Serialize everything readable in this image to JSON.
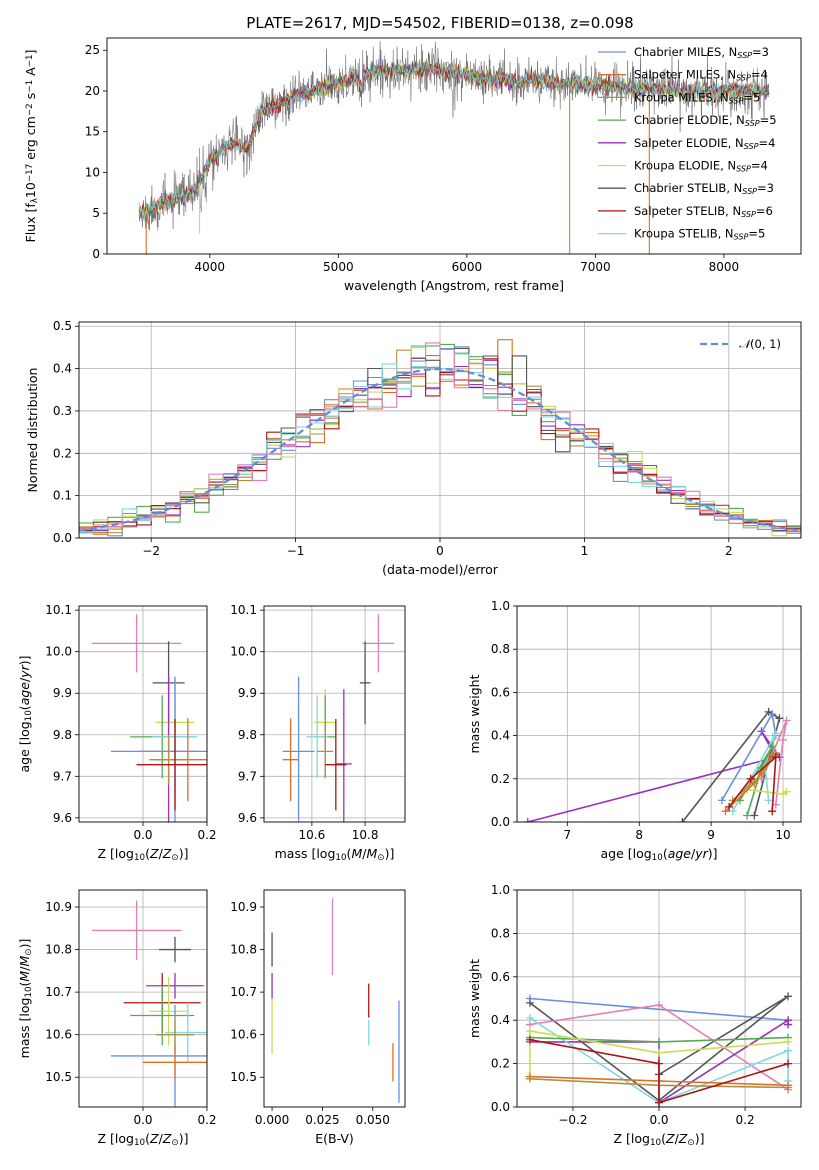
{
  "figure": {
    "title": "PLATE=2617, MJD=54502, FIBERID=0138, z=0.098"
  },
  "colors": {
    "Chabrier MILES": "#6a8fdc",
    "Salpeter MILES": "#e07020",
    "Kroupa MILES": "#b09040",
    "Chabrier ELODIE": "#55aa55",
    "Salpeter ELODIE": "#9933bb",
    "Kroupa ELODIE": "#c8e050",
    "Chabrier STELIB": "#555555",
    "Salpeter STELIB": "#aa1515",
    "Kroupa STELIB": "#80d8e0",
    "Extra": "#e080b0"
  },
  "chart_data": [
    {
      "id": "spectrum",
      "type": "line",
      "xlabel": "wavelength [Angstrom, rest frame]",
      "ylabel": "Flux [fλ10⁻¹⁷ erg cm⁻² s⁻¹ A⁻¹]",
      "xlim": [
        3200,
        8600
      ],
      "ylim": [
        0,
        26.5
      ],
      "xticks": [
        4000,
        5000,
        6000,
        7000,
        8000
      ],
      "yticks": [
        0,
        5,
        10,
        15,
        20,
        25
      ],
      "legend": "top-right",
      "series": [
        {
          "name": "Chabrier MILES, N_SSP=3",
          "legend_main": "Chabrier MILES, N",
          "legend_sub": "SSP",
          "legend_tail": "=3"
        },
        {
          "name": "Salpeter MILES, N_SSP=4",
          "legend_main": "Salpeter MILES, N",
          "legend_sub": "SSP",
          "legend_tail": "=4"
        },
        {
          "name": "Kroupa MILES, N_SSP=5",
          "legend_main": "Kroupa MILES, N",
          "legend_sub": "SSP",
          "legend_tail": "=5"
        },
        {
          "name": "Chabrier ELODIE, N_SSP=5",
          "legend_main": "Chabrier ELODIE, N",
          "legend_sub": "SSP",
          "legend_tail": "=5"
        },
        {
          "name": "Salpeter ELODIE, N_SSP=4",
          "legend_main": "Salpeter ELODIE, N",
          "legend_sub": "SSP",
          "legend_tail": "=4"
        },
        {
          "name": "Kroupa ELODIE, N_SSP=4",
          "legend_main": "Kroupa ELODIE, N",
          "legend_sub": "SSP",
          "legend_tail": "=4"
        },
        {
          "name": "Chabrier STELIB, N_SSP=3",
          "legend_main": "Chabrier STELIB, N",
          "legend_sub": "SSP",
          "legend_tail": "=3"
        },
        {
          "name": "Salpeter STELIB, N_SSP=6",
          "legend_main": "Salpeter STELIB, N",
          "legend_sub": "SSP",
          "legend_tail": "=6"
        },
        {
          "name": "Kroupa STELIB, N_SSP=5",
          "legend_main": "Kroupa STELIB, N",
          "legend_sub": "SSP",
          "legend_tail": "=5"
        }
      ],
      "continuum": {
        "x": [
          3500,
          3600,
          3700,
          3800,
          3900,
          4000,
          4100,
          4200,
          4300,
          4400,
          4500,
          4600,
          4700,
          4800,
          4900,
          5000,
          5100,
          5200,
          5300,
          5400,
          5500,
          5600,
          5700,
          5800,
          5900,
          6000,
          6100,
          6200,
          6300,
          6400,
          6500,
          6600,
          6700,
          6800,
          6900,
          7000,
          7100,
          7200,
          7300,
          7400,
          7500,
          7600,
          7700,
          7800,
          7900,
          8000,
          8100,
          8200,
          8300
        ],
        "y": [
          5.0,
          6.0,
          6.5,
          7.0,
          8.0,
          11.5,
          13.0,
          13.5,
          13.0,
          17.5,
          18.0,
          19.0,
          19.5,
          20.0,
          20.5,
          21.0,
          21.5,
          22.0,
          22.5,
          22.5,
          22.5,
          22.5,
          22.8,
          22.5,
          22.3,
          22.0,
          21.5,
          21.5,
          21.5,
          21.0,
          21.5,
          21.3,
          20.8,
          21.0,
          20.7,
          20.6,
          20.5,
          20.3,
          20.2,
          20.4,
          20.3,
          20.2,
          20.0,
          20.0,
          20.1,
          20.0,
          20.2,
          20.0,
          20.0
        ]
      },
      "dips": [
        {
          "x": 3505,
          "y": 0,
          "series": "Salpeter MILES, N_SSP=4"
        },
        {
          "x": 3920,
          "y": 2.5,
          "series": "Kroupa ELODIE, N_SSP=4"
        },
        {
          "x": 6800,
          "y": 0,
          "series": "Kroupa MILES, N_SSP=5"
        },
        {
          "x": 7420,
          "y": 0,
          "series": "Salpeter MILES, N_SSP=4"
        }
      ]
    },
    {
      "id": "residuals",
      "type": "step-histogram",
      "xlabel": "(data-model)/error",
      "ylabel": "Normed distribution",
      "xlim": [
        -2.5,
        2.5
      ],
      "ylim": [
        0,
        0.51
      ],
      "xticks": [
        -2,
        -1,
        0,
        1,
        2
      ],
      "yticks": [
        0.0,
        0.1,
        0.2,
        0.3,
        0.4,
        0.5
      ],
      "grid": true,
      "legend": "top-right",
      "reference": {
        "name": "N(0,1)",
        "label_main": "𝒩(0, 1)",
        "mu": 0,
        "sigma": 1
      },
      "bin_width": 0.1
    },
    {
      "id": "age-vs-Z",
      "type": "errorbar",
      "xlabel": "Z [log10(Z/Z⊙)]",
      "ylabel": "age [log10(age/yr)]",
      "xlim": [
        -0.2,
        0.2
      ],
      "ylim": [
        9.59,
        10.11
      ],
      "xticks": [
        0.0,
        0.2
      ],
      "yticks": [
        9.6,
        9.7,
        9.8,
        9.9,
        10.0,
        10.1
      ],
      "grid": true,
      "points": [
        {
          "color": "Extra",
          "x": -0.02,
          "y": 10.02,
          "xerr": 0.14,
          "yerr": 0.07
        },
        {
          "color": "Chabrier STELIB",
          "x": 0.08,
          "y": 9.925,
          "xerr": 0.05,
          "yerr": 0.1
        },
        {
          "color": "Kroupa ELODIE",
          "x": 0.1,
          "y": 9.83,
          "xerr": 0.06,
          "yerr": 0.08
        },
        {
          "color": "Salpeter ELODIE",
          "x": 0.08,
          "y": 9.76,
          "xerr": 0.09,
          "yerr": 0.18
        },
        {
          "color": "Chabrier ELODIE",
          "x": 0.06,
          "y": 9.795,
          "xerr": 0.1,
          "yerr": 0.1
        },
        {
          "color": "Kroupa STELIB",
          "x": 0.1,
          "y": 9.795,
          "xerr": 0.07,
          "yerr": 0.14
        },
        {
          "color": "Chabrier MILES",
          "x": 0.1,
          "y": 9.76,
          "xerr": 0.2,
          "yerr": 0.18
        },
        {
          "color": "Salpeter MILES",
          "x": 0.14,
          "y": 9.74,
          "xerr": 0.1,
          "yerr": 0.1
        },
        {
          "color": "Kroupa MILES",
          "x": 0.08,
          "y": 9.74,
          "xerr": 0.06,
          "yerr": 0.06
        },
        {
          "color": "Salpeter STELIB",
          "x": 0.1,
          "y": 9.728,
          "xerr": 0.12,
          "yerr": 0.11
        }
      ]
    },
    {
      "id": "age-vs-mass",
      "type": "errorbar",
      "xlabel": "mass [log10(M/M⊙)]",
      "ylabel": "",
      "xlim": [
        10.42,
        10.95
      ],
      "ylim": [
        9.59,
        10.11
      ],
      "xticks": [
        10.6,
        10.8
      ],
      "yticks": [
        9.6,
        9.7,
        9.8,
        9.9,
        10.0,
        10.1
      ],
      "grid": true,
      "points": [
        {
          "color": "Extra",
          "x": 10.85,
          "y": 10.02,
          "xerr": 0.06,
          "yerr": 0.07
        },
        {
          "color": "Chabrier STELIB",
          "x": 10.8,
          "y": 9.925,
          "xerr": 0.02,
          "yerr": 0.1
        },
        {
          "color": "Kroupa ELODIE",
          "x": 10.65,
          "y": 9.83,
          "xerr": 0.04,
          "yerr": 0.08
        },
        {
          "color": "Salpeter ELODIE",
          "x": 10.72,
          "y": 9.73,
          "xerr": 0.03,
          "yerr": 0.18
        },
        {
          "color": "Chabrier ELODIE",
          "x": 10.65,
          "y": 9.795,
          "xerr": 0.04,
          "yerr": 0.1
        },
        {
          "color": "Kroupa STELIB",
          "x": 10.62,
          "y": 9.795,
          "xerr": 0.04,
          "yerr": 0.1
        },
        {
          "color": "Chabrier MILES",
          "x": 10.55,
          "y": 9.76,
          "xerr": 0.06,
          "yerr": 0.18
        },
        {
          "color": "Salpeter MILES",
          "x": 10.52,
          "y": 9.74,
          "xerr": 0.03,
          "yerr": 0.1
        },
        {
          "color": "Kroupa MILES",
          "x": 10.65,
          "y": 9.76,
          "xerr": 0.03,
          "yerr": 0.06
        },
        {
          "color": "Salpeter STELIB",
          "x": 10.69,
          "y": 9.728,
          "xerr": 0.04,
          "yerr": 0.11
        }
      ]
    },
    {
      "id": "weight-vs-age",
      "type": "line",
      "xlabel": "age [log10(age/yr)]",
      "ylabel": "mass weight",
      "xlim": [
        6.3,
        10.25
      ],
      "ylim": [
        0,
        1.0
      ],
      "xticks": [
        7,
        8,
        9,
        10
      ],
      "yticks": [
        0.0,
        0.2,
        0.4,
        0.6,
        0.8,
        1.0
      ],
      "grid": true,
      "series": [
        {
          "color": "Salpeter ELODIE",
          "x": [
            6.45,
            9.9,
            9.7,
            9.95
          ],
          "y": [
            0.0,
            0.3,
            0.42,
            0.3
          ]
        },
        {
          "color": "Chabrier STELIB",
          "x": [
            8.6,
            9.8,
            9.95,
            9.6
          ],
          "y": [
            0.0,
            0.51,
            0.48,
            0.03
          ]
        },
        {
          "color": "Chabrier MILES",
          "x": [
            9.15,
            9.85,
            9.9
          ],
          "y": [
            0.1,
            0.5,
            0.4
          ]
        },
        {
          "color": "Extra",
          "x": [
            9.7,
            10.05,
            10.0,
            9.9
          ],
          "y": [
            0.2,
            0.47,
            0.38,
            0.08
          ]
        },
        {
          "color": "Kroupa STELIB",
          "x": [
            9.3,
            9.9,
            9.75,
            9.8
          ],
          "y": [
            0.05,
            0.41,
            0.26,
            0.1
          ]
        },
        {
          "color": "Chabrier ELODIE",
          "x": [
            9.4,
            9.85,
            9.7,
            9.5
          ],
          "y": [
            0.1,
            0.35,
            0.25,
            0.03
          ]
        },
        {
          "color": "Kroupa ELODIE",
          "x": [
            9.5,
            10.0,
            10.05
          ],
          "y": [
            0.15,
            0.13,
            0.14
          ]
        },
        {
          "color": "Salpeter MILES",
          "x": [
            9.2,
            9.6,
            9.85
          ],
          "y": [
            0.05,
            0.18,
            0.31
          ]
        },
        {
          "color": "Kroupa MILES",
          "x": [
            9.3,
            9.7,
            9.9
          ],
          "y": [
            0.1,
            0.22,
            0.32
          ]
        },
        {
          "color": "Salpeter STELIB",
          "x": [
            9.25,
            9.55,
            9.9,
            9.85
          ],
          "y": [
            0.07,
            0.2,
            0.3,
            0.05
          ]
        }
      ]
    },
    {
      "id": "mass-vs-Z",
      "type": "errorbar",
      "xlabel": "Z [log10(Z/Z⊙)]",
      "ylabel": "mass [log10(M/M⊙)]",
      "xlim": [
        -0.2,
        0.2
      ],
      "ylim": [
        10.43,
        10.94
      ],
      "xticks": [
        0.0,
        0.2
      ],
      "yticks": [
        10.5,
        10.6,
        10.7,
        10.8,
        10.9
      ],
      "grid": true,
      "points": [
        {
          "color": "Extra",
          "x": -0.02,
          "y": 10.845,
          "xerr": 0.14,
          "yerr": 0.07
        },
        {
          "color": "Chabrier STELIB",
          "x": 0.1,
          "y": 10.8,
          "xerr": 0.05,
          "yerr": 0.03
        },
        {
          "color": "Salpeter ELODIE",
          "x": 0.1,
          "y": 10.715,
          "xerr": 0.09,
          "yerr": 0.03
        },
        {
          "color": "Salpeter STELIB",
          "x": 0.06,
          "y": 10.675,
          "xerr": 0.12,
          "yerr": 0.07
        },
        {
          "color": "Kroupa ELODIE",
          "x": 0.08,
          "y": 10.655,
          "xerr": 0.06,
          "yerr": 0.08
        },
        {
          "color": "Chabrier ELODIE",
          "x": 0.06,
          "y": 10.645,
          "xerr": 0.1,
          "yerr": 0.07
        },
        {
          "color": "Kroupa STELIB",
          "x": 0.14,
          "y": 10.605,
          "xerr": 0.07,
          "yerr": 0.07
        },
        {
          "color": "Chabrier MILES",
          "x": 0.1,
          "y": 10.55,
          "xerr": 0.2,
          "yerr": 0.12
        },
        {
          "color": "Salpeter MILES",
          "x": 0.1,
          "y": 10.535,
          "xerr": 0.1,
          "yerr": 0.04
        },
        {
          "color": "Kroupa MILES",
          "x": 0.1,
          "y": 10.6,
          "xerr": 0.06,
          "yerr": 0.04
        }
      ]
    },
    {
      "id": "mass-vs-EBV",
      "type": "errorbar",
      "xlabel": "E(B-V)",
      "ylabel": "",
      "xlim": [
        -0.004,
        0.066
      ],
      "ylim": [
        10.43,
        10.94
      ],
      "xticks": [
        0.0,
        0.025,
        0.05
      ],
      "tick_labels": [
        "0.000",
        "0.025",
        "0.050"
      ],
      "yticks": [
        10.5,
        10.6,
        10.7,
        10.8,
        10.9
      ],
      "grid": false,
      "points": [
        {
          "color": "Extra",
          "x": 0.03,
          "y": 10.83,
          "xerr": 0.0,
          "yerr": 0.09
        },
        {
          "color": "Chabrier STELIB",
          "x": 0.0,
          "y": 10.8,
          "xerr": 0.0,
          "yerr": 0.04
        },
        {
          "color": "Salpeter ELODIE",
          "x": 0.0,
          "y": 10.715,
          "xerr": 0.0,
          "yerr": 0.03
        },
        {
          "color": "Kroupa ELODIE",
          "x": 0.0,
          "y": 10.62,
          "xerr": 0.0,
          "yerr": 0.065
        },
        {
          "color": "Salpeter STELIB",
          "x": 0.048,
          "y": 10.68,
          "xerr": 0.0,
          "yerr": 0.04
        },
        {
          "color": "Kroupa STELIB",
          "x": 0.048,
          "y": 10.605,
          "xerr": 0.0,
          "yerr": 0.03
        },
        {
          "color": "Salpeter MILES",
          "x": 0.06,
          "y": 10.535,
          "xerr": 0.0,
          "yerr": 0.045
        },
        {
          "color": "Chabrier MILES",
          "x": 0.063,
          "y": 10.56,
          "xerr": 0.0,
          "yerr": 0.12
        }
      ]
    },
    {
      "id": "weight-vs-Z",
      "type": "line",
      "xlabel": "Z [log10(Z/Z⊙)]",
      "ylabel": "mass weight",
      "xlim": [
        -0.33,
        0.33
      ],
      "ylim": [
        0,
        1.0
      ],
      "xticks": [
        -0.2,
        0.0,
        0.2
      ],
      "yticks": [
        0.0,
        0.2,
        0.4,
        0.6,
        0.8,
        1.0
      ],
      "grid": true,
      "series": [
        {
          "color": "Chabrier MILES",
          "x": [
            -0.3,
            0.3,
            0.3
          ],
          "y": [
            0.5,
            0.4,
            0.38
          ]
        },
        {
          "color": "Chabrier STELIB",
          "x": [
            -0.3,
            0.0,
            0.3,
            0.0
          ],
          "y": [
            0.48,
            0.03,
            0.51,
            0.15
          ]
        },
        {
          "color": "Extra",
          "x": [
            -0.3,
            0.0,
            0.3,
            0.3
          ],
          "y": [
            0.38,
            0.47,
            0.08,
            0.1
          ]
        },
        {
          "color": "Salpeter ELODIE",
          "x": [
            -0.3,
            0.0,
            0.0,
            0.3,
            0.3
          ],
          "y": [
            0.3,
            0.3,
            0.02,
            0.4,
            0.38
          ]
        },
        {
          "color": "Kroupa STELIB",
          "x": [
            -0.3,
            0.0,
            0.3,
            0.3
          ],
          "y": [
            0.41,
            0.02,
            0.26,
            0.12
          ]
        },
        {
          "color": "Chabrier ELODIE",
          "x": [
            -0.3,
            0.0,
            0.3
          ],
          "y": [
            0.32,
            0.3,
            0.32
          ]
        },
        {
          "color": "Kroupa ELODIE",
          "x": [
            -0.3,
            -0.3,
            0.0,
            0.3
          ],
          "y": [
            0.14,
            0.35,
            0.25,
            0.3
          ]
        },
        {
          "color": "Salpeter MILES",
          "x": [
            -0.3,
            0.0,
            0.3
          ],
          "y": [
            0.14,
            0.12,
            0.1
          ]
        },
        {
          "color": "Kroupa MILES",
          "x": [
            -0.3,
            0.0,
            0.3
          ],
          "y": [
            0.13,
            0.1,
            0.09
          ]
        },
        {
          "color": "Salpeter STELIB",
          "x": [
            -0.3,
            0.0,
            0.0,
            0.3
          ],
          "y": [
            0.31,
            0.2,
            0.02,
            0.2
          ]
        }
      ]
    }
  ]
}
